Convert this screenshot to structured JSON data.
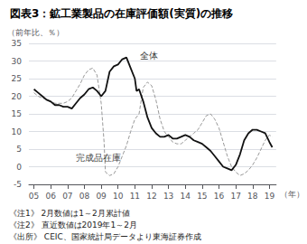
{
  "chart_data": {
    "type": "line",
    "title": "図表3：鉱工業製品の在庫評価額(実質)の推移",
    "ylabel": "（前年比、％）",
    "xlabel": "（年）",
    "xlim": [
      2004.7,
      2019.4
    ],
    "xticks": [
      {
        "value": 2005,
        "label": "05"
      },
      {
        "value": 2006,
        "label": "06"
      },
      {
        "value": 2007,
        "label": "07"
      },
      {
        "value": 2008,
        "label": "08"
      },
      {
        "value": 2009,
        "label": "09"
      },
      {
        "value": 2010,
        "label": "10"
      },
      {
        "value": 2011,
        "label": "11"
      },
      {
        "value": 2012,
        "label": "12"
      },
      {
        "value": 2013,
        "label": "13"
      },
      {
        "value": 2014,
        "label": "14"
      },
      {
        "value": 2015,
        "label": "15"
      },
      {
        "value": 2016,
        "label": "16"
      },
      {
        "value": 2017,
        "label": "17"
      },
      {
        "value": 2018,
        "label": "18"
      },
      {
        "value": 2019,
        "label": "19"
      }
    ],
    "ylim": [
      -5,
      35
    ],
    "yticks": [
      -5,
      0,
      5,
      10,
      15,
      20,
      25,
      30,
      35
    ],
    "grid": true,
    "series": [
      {
        "color": "#999999",
        "line_style": "dashed",
        "x": [
          2005.0,
          2005.25,
          2005.5,
          2005.75,
          2006.0,
          2006.25,
          2006.5,
          2006.75,
          2007.0,
          2007.25,
          2007.5,
          2007.75,
          2008.0,
          2008.25,
          2008.5,
          2008.75,
          2009.0,
          2009.17,
          2009.25,
          2009.5,
          2009.75,
          2010.0,
          2010.25,
          2010.5,
          2010.75,
          2011.0,
          2011.25,
          2011.5,
          2011.75,
          2012.0,
          2012.25,
          2012.5,
          2012.75,
          2013.0,
          2013.25,
          2013.5,
          2013.75,
          2014.0,
          2014.25,
          2014.5,
          2014.75,
          2015.0,
          2015.25,
          2015.5,
          2015.75,
          2016.0,
          2016.25,
          2016.5,
          2016.75,
          2017.0,
          2017.25,
          2017.5,
          2017.75,
          2018.0,
          2018.25,
          2018.5,
          2018.75,
          2019.0,
          2019.17
        ],
        "values": [
          21.0,
          20.0,
          19.5,
          19.0,
          18.5,
          18.0,
          18.0,
          18.0,
          18.5,
          19.5,
          21.5,
          23.5,
          26.0,
          27.5,
          28.0,
          26.0,
          18.0,
          7.0,
          -1.5,
          -2.5,
          -2.0,
          0.0,
          3.0,
          6.0,
          10.0,
          13.5,
          15.0,
          22.5,
          24.0,
          23.0,
          19.0,
          13.5,
          10.0,
          8.5,
          7.0,
          6.5,
          6.5,
          7.5,
          8.5,
          9.5,
          10.5,
          12.5,
          14.5,
          15.0,
          13.5,
          11.0,
          7.0,
          3.0,
          0.0,
          -1.5,
          -2.5,
          -2.0,
          -1.0,
          0.5,
          2.5,
          5.0,
          7.5,
          9.0,
          8.5
        ]
      },
      {
        "color": "#111111",
        "line_style": "solid",
        "x": [
          2005.0,
          2005.25,
          2005.5,
          2005.75,
          2006.0,
          2006.25,
          2006.5,
          2006.75,
          2007.0,
          2007.25,
          2007.5,
          2007.75,
          2008.0,
          2008.25,
          2008.5,
          2008.75,
          2009.0,
          2009.25,
          2009.5,
          2009.75,
          2010.0,
          2010.25,
          2010.5,
          2010.75,
          2011.0,
          2011.1,
          2011.25,
          2011.5,
          2011.75,
          2012.0,
          2012.25,
          2012.5,
          2012.75,
          2013.0,
          2013.25,
          2013.5,
          2013.75,
          2014.0,
          2014.25,
          2014.5,
          2014.75,
          2015.0,
          2015.25,
          2015.5,
          2015.75,
          2016.0,
          2016.25,
          2016.5,
          2016.75,
          2017.0,
          2017.25,
          2017.5,
          2017.75,
          2018.0,
          2018.25,
          2018.5,
          2018.75,
          2019.0,
          2019.17
        ],
        "values": [
          22.0,
          21.0,
          20.0,
          19.0,
          18.5,
          17.5,
          17.5,
          17.0,
          17.0,
          16.5,
          18.0,
          19.5,
          20.5,
          22.0,
          22.5,
          21.5,
          20.0,
          21.5,
          27.0,
          28.5,
          29.0,
          30.5,
          31.0,
          28.0,
          25.0,
          21.5,
          22.0,
          18.5,
          14.0,
          11.0,
          9.5,
          8.5,
          8.5,
          9.0,
          8.0,
          8.0,
          8.5,
          9.0,
          8.5,
          7.5,
          7.0,
          6.5,
          5.5,
          4.5,
          3.0,
          1.5,
          0.0,
          -0.5,
          -1.0,
          0.5,
          3.5,
          7.5,
          9.5,
          10.5,
          10.5,
          10.0,
          9.5,
          7.0,
          5.5
        ]
      }
    ],
    "annotations": [
      {
        "text": "全体",
        "x": 2011.3,
        "y": 31.5
      },
      {
        "text": "完成品在庫",
        "x": 2007.5,
        "y": 2.5
      }
    ],
    "footnotes": [
      "《注1》 2月数値は1～2月累計値",
      "《注2》 直近数値は2019年1～2月",
      "《出所》 CEIC、国家統計局データより東海証券作成"
    ]
  }
}
